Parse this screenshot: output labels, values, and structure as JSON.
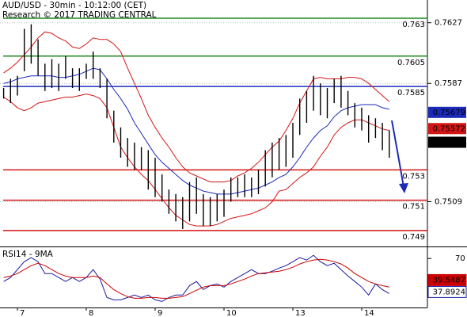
{
  "chart_data": [
    {
      "type": "hilo",
      "title": "AUD/USD - 30min - 10:12:00 (CET)",
      "subtitle": "Research © 2017 TRADING CENTRAL",
      "categories": [
        null,
        null,
        "7",
        null,
        null,
        null,
        null,
        null,
        null,
        null,
        null,
        null,
        "8",
        null,
        null,
        null,
        null,
        null,
        null,
        null,
        null,
        null,
        "9",
        null,
        null,
        null,
        null,
        null,
        null,
        null,
        null,
        null,
        "10",
        null,
        null,
        null,
        null,
        null,
        null,
        null,
        null,
        null,
        "13",
        null,
        null,
        null,
        null,
        null,
        null,
        null,
        null,
        null,
        "14",
        null,
        null,
        null,
        null
      ],
      "high": [
        0.7584,
        0.759,
        0.7592,
        0.7623,
        0.7626,
        0.7616,
        0.76,
        0.7603,
        0.76,
        0.7605,
        0.7597,
        0.7597,
        0.76,
        0.7608,
        0.7597,
        0.759,
        0.7569,
        0.7558,
        0.7551,
        0.7548,
        0.7545,
        0.7543,
        0.7538,
        0.7527,
        0.7517,
        0.7514,
        0.7512,
        0.7522,
        0.7525,
        0.7514,
        0.7512,
        0.7514,
        0.7517,
        0.7525,
        0.7525,
        0.7527,
        0.7525,
        0.753,
        0.7543,
        0.7548,
        0.7551,
        0.7553,
        0.7561,
        0.7577,
        0.7582,
        0.7592,
        0.7587,
        0.7584,
        0.759,
        0.7592,
        0.7582,
        0.7574,
        0.7571,
        0.7566,
        0.7564,
        0.7561,
        0.7556
      ],
      "low": [
        0.7577,
        0.7574,
        0.7579,
        0.7595,
        0.76,
        0.7592,
        0.7582,
        0.7584,
        0.7582,
        0.759,
        0.7584,
        0.7582,
        0.759,
        0.759,
        0.7584,
        0.7564,
        0.7548,
        0.7538,
        0.7532,
        0.753,
        0.753,
        0.7517,
        0.7512,
        0.7509,
        0.7501,
        0.7496,
        0.7491,
        0.7496,
        0.7501,
        0.7493,
        0.7493,
        0.7496,
        0.7499,
        0.7509,
        0.7512,
        0.7512,
        0.7512,
        0.7514,
        0.7519,
        0.7525,
        0.753,
        0.7532,
        0.7538,
        0.7553,
        0.7561,
        0.7569,
        0.7566,
        0.7564,
        0.7574,
        0.7571,
        0.7566,
        0.7558,
        0.7556,
        0.7548,
        0.7551,
        0.7543,
        0.7538
      ],
      "color": "#000000",
      "series": [
        {
          "color": "#1c2ab8",
          "values": [
            0.7587,
            0.7588,
            0.759,
            0.7591,
            0.7592,
            0.7592,
            0.7592,
            0.7592,
            0.7591,
            0.7591,
            0.7592,
            0.7593,
            0.7595,
            0.7597,
            0.7596,
            0.759,
            0.7583,
            0.7577,
            0.757,
            0.7561,
            0.7554,
            0.7547,
            0.754,
            0.7535,
            0.7531,
            0.7527,
            0.7523,
            0.752,
            0.7518,
            0.7516,
            0.7515,
            0.7514,
            0.7514,
            0.7514,
            0.7515,
            0.7516,
            0.7517,
            0.7518,
            0.752,
            0.7522,
            0.7525,
            0.7527,
            0.7532,
            0.7538,
            0.7545,
            0.7551,
            0.7556,
            0.7559,
            0.7565,
            0.7569,
            0.7571,
            0.7572,
            0.7573,
            0.7573,
            0.7573,
            0.7571,
            0.757
          ]
        },
        {
          "color": "#d41515",
          "values": [
            0.7594,
            0.7597,
            0.7601,
            0.7606,
            0.7611,
            0.7617,
            0.7621,
            0.762,
            0.7617,
            0.7615,
            0.7611,
            0.761,
            0.7613,
            0.7617,
            0.7616,
            0.7616,
            0.7613,
            0.7608,
            0.7597,
            0.7587,
            0.7577,
            0.7566,
            0.7558,
            0.7551,
            0.7545,
            0.7538,
            0.7532,
            0.7528,
            0.7526,
            0.7524,
            0.7522,
            0.7522,
            0.7522,
            0.7523,
            0.7526,
            0.7528,
            0.7531,
            0.7535,
            0.754,
            0.7545,
            0.7549,
            0.7556,
            0.7564,
            0.7574,
            0.7582,
            0.759,
            0.7591,
            0.759,
            0.759,
            0.759,
            0.7591,
            0.7591,
            0.759,
            0.7587,
            0.7583,
            0.7579,
            0.7575
          ]
        },
        {
          "color": "#d41515",
          "values": [
            0.7578,
            0.7575,
            0.7571,
            0.7569,
            0.7571,
            0.7574,
            0.7575,
            0.7576,
            0.7577,
            0.7578,
            0.7578,
            0.7579,
            0.758,
            0.7579,
            0.7577,
            0.7571,
            0.7558,
            0.7545,
            0.7538,
            0.7532,
            0.7527,
            0.7523,
            0.7517,
            0.7511,
            0.7505,
            0.75,
            0.7497,
            0.7494,
            0.7493,
            0.7493,
            0.7493,
            0.7494,
            0.7496,
            0.7498,
            0.7499,
            0.75,
            0.7501,
            0.7503,
            0.7505,
            0.7509,
            0.7516,
            0.7517,
            0.7521,
            0.7525,
            0.7528,
            0.7532,
            0.7539,
            0.7545,
            0.7553,
            0.7558,
            0.7561,
            0.7563,
            0.7563,
            0.7561,
            0.7559,
            0.7557,
            0.7556
          ]
        }
      ],
      "levels": [
        {
          "value": 0.763,
          "color": "#1f8a1f"
        },
        {
          "value": 0.7605,
          "color": "#1f8a1f"
        },
        {
          "value": 0.7585,
          "color": "#2030c0"
        },
        {
          "value": 0.753,
          "color": "#d41515"
        },
        {
          "value": 0.751,
          "color": "#d41515"
        },
        {
          "value": 0.749,
          "color": "#d41515"
        }
      ],
      "price_labels": [
        {
          "value": 0.75679,
          "color": "#1c2ab8"
        },
        {
          "value": 0.75572,
          "color": "#d41515"
        },
        {
          "value": 0.75482,
          "color": "#000000"
        }
      ],
      "ylim": [
        0.748,
        0.7642
      ],
      "yticks": [
        0.7627,
        0.7587,
        0.7509
      ],
      "grid": true
    },
    {
      "type": "line",
      "title": "RSI14 - 9MA",
      "series": [
        {
          "color": "#1a1aa0",
          "values": [
            47.9,
            51.7,
            59.3,
            66.9,
            70.8,
            66.9,
            55.5,
            55.5,
            51.7,
            47.9,
            51.7,
            47.9,
            51.7,
            59.3,
            50.2,
            32.6,
            30.3,
            30.3,
            32.6,
            34.9,
            32.6,
            34.9,
            30.3,
            28.8,
            32.6,
            34.9,
            34.9,
            44.0,
            47.9,
            40.2,
            44.0,
            45.6,
            42.5,
            47.9,
            51.7,
            55.5,
            59.3,
            55.5,
            55.5,
            57.8,
            60.8,
            63.1,
            66.9,
            70.8,
            68.5,
            73.1,
            66.9,
            63.1,
            65.4,
            59.3,
            53.2,
            47.9,
            42.5,
            34.9,
            45.6,
            40.2,
            36.4
          ]
        },
        {
          "color": "#cc0000",
          "values": [
            51.7,
            53.2,
            55.5,
            59.3,
            63.1,
            65.4,
            63.1,
            59.3,
            55.5,
            53.2,
            51.7,
            51.7,
            51.7,
            53.2,
            51.7,
            45.6,
            40.2,
            36.4,
            33.4,
            31.8,
            31.8,
            32.6,
            32.6,
            31.8,
            31.8,
            32.6,
            33.4,
            36.4,
            39.5,
            42.5,
            44.0,
            44.0,
            44.0,
            45.6,
            47.9,
            50.2,
            53.2,
            55.5,
            56.3,
            57.0,
            57.8,
            59.3,
            61.6,
            64.7,
            66.9,
            68.5,
            69.2,
            68.5,
            66.9,
            64.7,
            60.8,
            55.5,
            51.7,
            47.9,
            45.6,
            44.0,
            42.5
          ]
        }
      ],
      "value_boxes": [
        {
          "value": 39.5487,
          "color": "#cc0000"
        },
        {
          "value": 37.8924,
          "color": "#1a1aa0"
        }
      ],
      "ylim": [
        23,
        80
      ],
      "yticks": [
        70
      ]
    }
  ]
}
